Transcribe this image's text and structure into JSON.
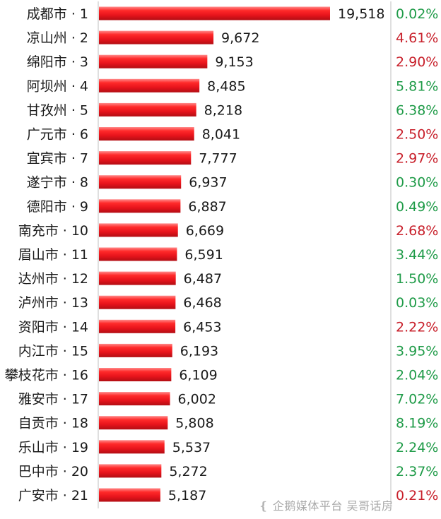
{
  "chart_data": {
    "type": "bar",
    "orientation": "horizontal",
    "title": "",
    "xlabel": "",
    "ylabel": "",
    "xlim": [
      0,
      20000
    ],
    "grid": false,
    "legend": "none",
    "bar_color": "#ee1c24",
    "rows": [
      {
        "label": "成都市 · 1",
        "value": 19518,
        "value_text": "19,518",
        "pct": "0.02%",
        "pct_color": "#1f9b48"
      },
      {
        "label": "凉山州 · 2",
        "value": 9672,
        "value_text": "9,672",
        "pct": "4.61%",
        "pct_color": "#c8202b"
      },
      {
        "label": "绵阳市 · 3",
        "value": 9153,
        "value_text": "9,153",
        "pct": "2.90%",
        "pct_color": "#c8202b"
      },
      {
        "label": "阿坝州 · 4",
        "value": 8485,
        "value_text": "8,485",
        "pct": "5.81%",
        "pct_color": "#1f9b48"
      },
      {
        "label": "甘孜州 · 5",
        "value": 8218,
        "value_text": "8,218",
        "pct": "6.38%",
        "pct_color": "#1f9b48"
      },
      {
        "label": "广元市 · 6",
        "value": 8041,
        "value_text": "8,041",
        "pct": "2.50%",
        "pct_color": "#c8202b"
      },
      {
        "label": "宜宾市 · 7",
        "value": 7777,
        "value_text": "7,777",
        "pct": "2.97%",
        "pct_color": "#c8202b"
      },
      {
        "label": "遂宁市 · 8",
        "value": 6937,
        "value_text": "6,937",
        "pct": "0.30%",
        "pct_color": "#1f9b48"
      },
      {
        "label": "德阳市 · 9",
        "value": 6887,
        "value_text": "6,887",
        "pct": "0.49%",
        "pct_color": "#1f9b48"
      },
      {
        "label": "南充市 · 10",
        "value": 6669,
        "value_text": "6,669",
        "pct": "2.68%",
        "pct_color": "#c8202b"
      },
      {
        "label": "眉山市 · 11",
        "value": 6591,
        "value_text": "6,591",
        "pct": "3.44%",
        "pct_color": "#1f9b48"
      },
      {
        "label": "达州市 · 12",
        "value": 6487,
        "value_text": "6,487",
        "pct": "1.50%",
        "pct_color": "#1f9b48"
      },
      {
        "label": "泸州市 · 13",
        "value": 6468,
        "value_text": "6,468",
        "pct": "0.03%",
        "pct_color": "#1f9b48"
      },
      {
        "label": "资阳市 · 14",
        "value": 6453,
        "value_text": "6,453",
        "pct": "2.22%",
        "pct_color": "#c8202b"
      },
      {
        "label": "内江市 · 15",
        "value": 6193,
        "value_text": "6,193",
        "pct": "3.95%",
        "pct_color": "#1f9b48"
      },
      {
        "label": "攀枝花市 · 16",
        "value": 6109,
        "value_text": "6,109",
        "pct": "2.04%",
        "pct_color": "#1f9b48"
      },
      {
        "label": "雅安市 · 17",
        "value": 6002,
        "value_text": "6,002",
        "pct": "7.02%",
        "pct_color": "#1f9b48"
      },
      {
        "label": "自贡市 · 18",
        "value": 5808,
        "value_text": "5,808",
        "pct": "8.19%",
        "pct_color": "#1f9b48"
      },
      {
        "label": "乐山市 · 19",
        "value": 5537,
        "value_text": "5,537",
        "pct": "2.24%",
        "pct_color": "#1f9b48"
      },
      {
        "label": "巴中市 · 20",
        "value": 5272,
        "value_text": "5,272",
        "pct": "2.37%",
        "pct_color": "#1f9b48"
      },
      {
        "label": "广安市 · 21",
        "value": 5187,
        "value_text": "5,187",
        "pct": "0.21%",
        "pct_color": "#c8202b"
      }
    ]
  },
  "watermark": {
    "icon": "penguin-icon",
    "text": "企鹅媒体平台 吴哥话房"
  }
}
